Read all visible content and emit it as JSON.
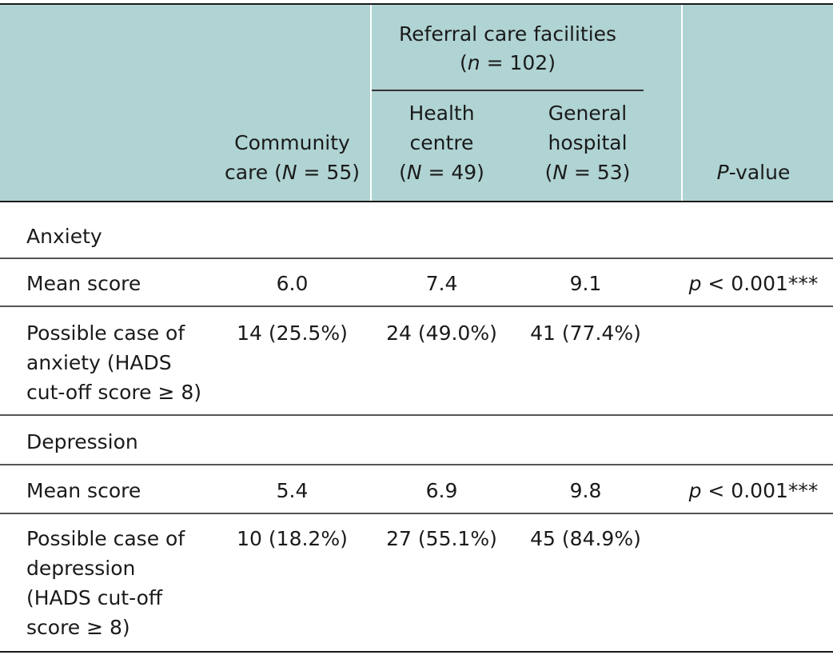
{
  "header": {
    "referral_title": "Referral care facilities",
    "referral_n_italic": "n",
    "referral_n_rest": " = 102)",
    "community_line1": "Community",
    "community_line2_a": "care (",
    "community_N": "N",
    "community_line2_b": " = 55)",
    "health_line1": "Health",
    "health_line2": "centre",
    "health_N": "N",
    "health_line3": " = 49)",
    "general_line1": "General",
    "general_line2": "hospital",
    "general_N": "N",
    "general_line3": " = 53)",
    "pvalue_italic": "P",
    "pvalue_rest": "-value"
  },
  "rows": {
    "anxiety_section": "Anxiety",
    "anxiety_mean_label": "Mean score",
    "anxiety_mean": [
      "6.0",
      "7.4",
      "9.1"
    ],
    "anxiety_p_italic": "p",
    "anxiety_p_rest": " < 0.001***",
    "anxiety_case_label": [
      "Possible case of",
      "anxiety (HADS",
      "cut-off score ≥ 8)"
    ],
    "anxiety_case": [
      "14 (25.5%)",
      "24 (49.0%)",
      "41 (77.4%)"
    ],
    "depression_section": "Depression",
    "depression_mean_label": "Mean score",
    "depression_mean": [
      "5.4",
      "6.9",
      "9.8"
    ],
    "depression_p_italic": "p",
    "depression_p_rest": " < 0.001***",
    "depression_case_label": [
      "Possible case of",
      "depression",
      "(HADS cut-off",
      "score ≥ 8)"
    ],
    "depression_case": [
      "10 (18.2%)",
      "27 (55.1%)",
      "45 (84.9%)"
    ]
  }
}
